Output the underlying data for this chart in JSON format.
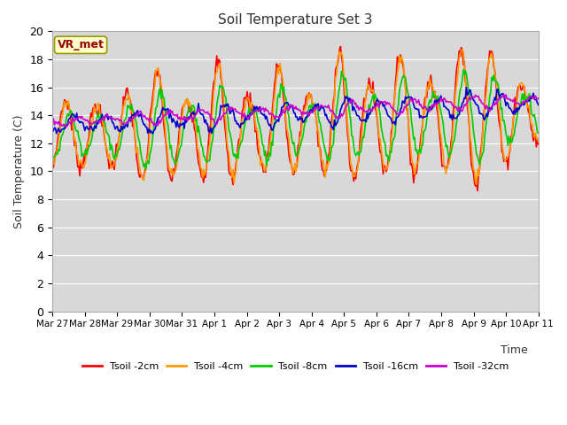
{
  "title": "Soil Temperature Set 3",
  "xlabel": "Time",
  "ylabel": "Soil Temperature (C)",
  "ylim": [
    0,
    20
  ],
  "yticks": [
    0,
    2,
    4,
    6,
    8,
    10,
    12,
    14,
    16,
    18,
    20
  ],
  "bg_color": "#d8d8d8",
  "grid_color": "#ffffff",
  "annotation_text": "VR_met",
  "annotation_facecolor": "#ffffcc",
  "annotation_edgecolor": "#999900",
  "annotation_textcolor": "#990000",
  "series_colors": [
    "#ff0000",
    "#ff9900",
    "#00cc00",
    "#0000cc",
    "#cc00cc"
  ],
  "series_labels": [
    "Tsoil -2cm",
    "Tsoil -4cm",
    "Tsoil -8cm",
    "Tsoil -16cm",
    "Tsoil -32cm"
  ],
  "x_tick_labels": [
    "Mar 27",
    "Mar 28",
    "Mar 29",
    "Mar 30",
    "Mar 31",
    "Apr 1",
    "Apr 2",
    "Apr 3",
    "Apr 4",
    "Apr 5",
    "Apr 6",
    "Apr 7",
    "Apr 8",
    "Apr 9",
    "Apr 10",
    "Apr 11"
  ],
  "line_width": 1.2
}
